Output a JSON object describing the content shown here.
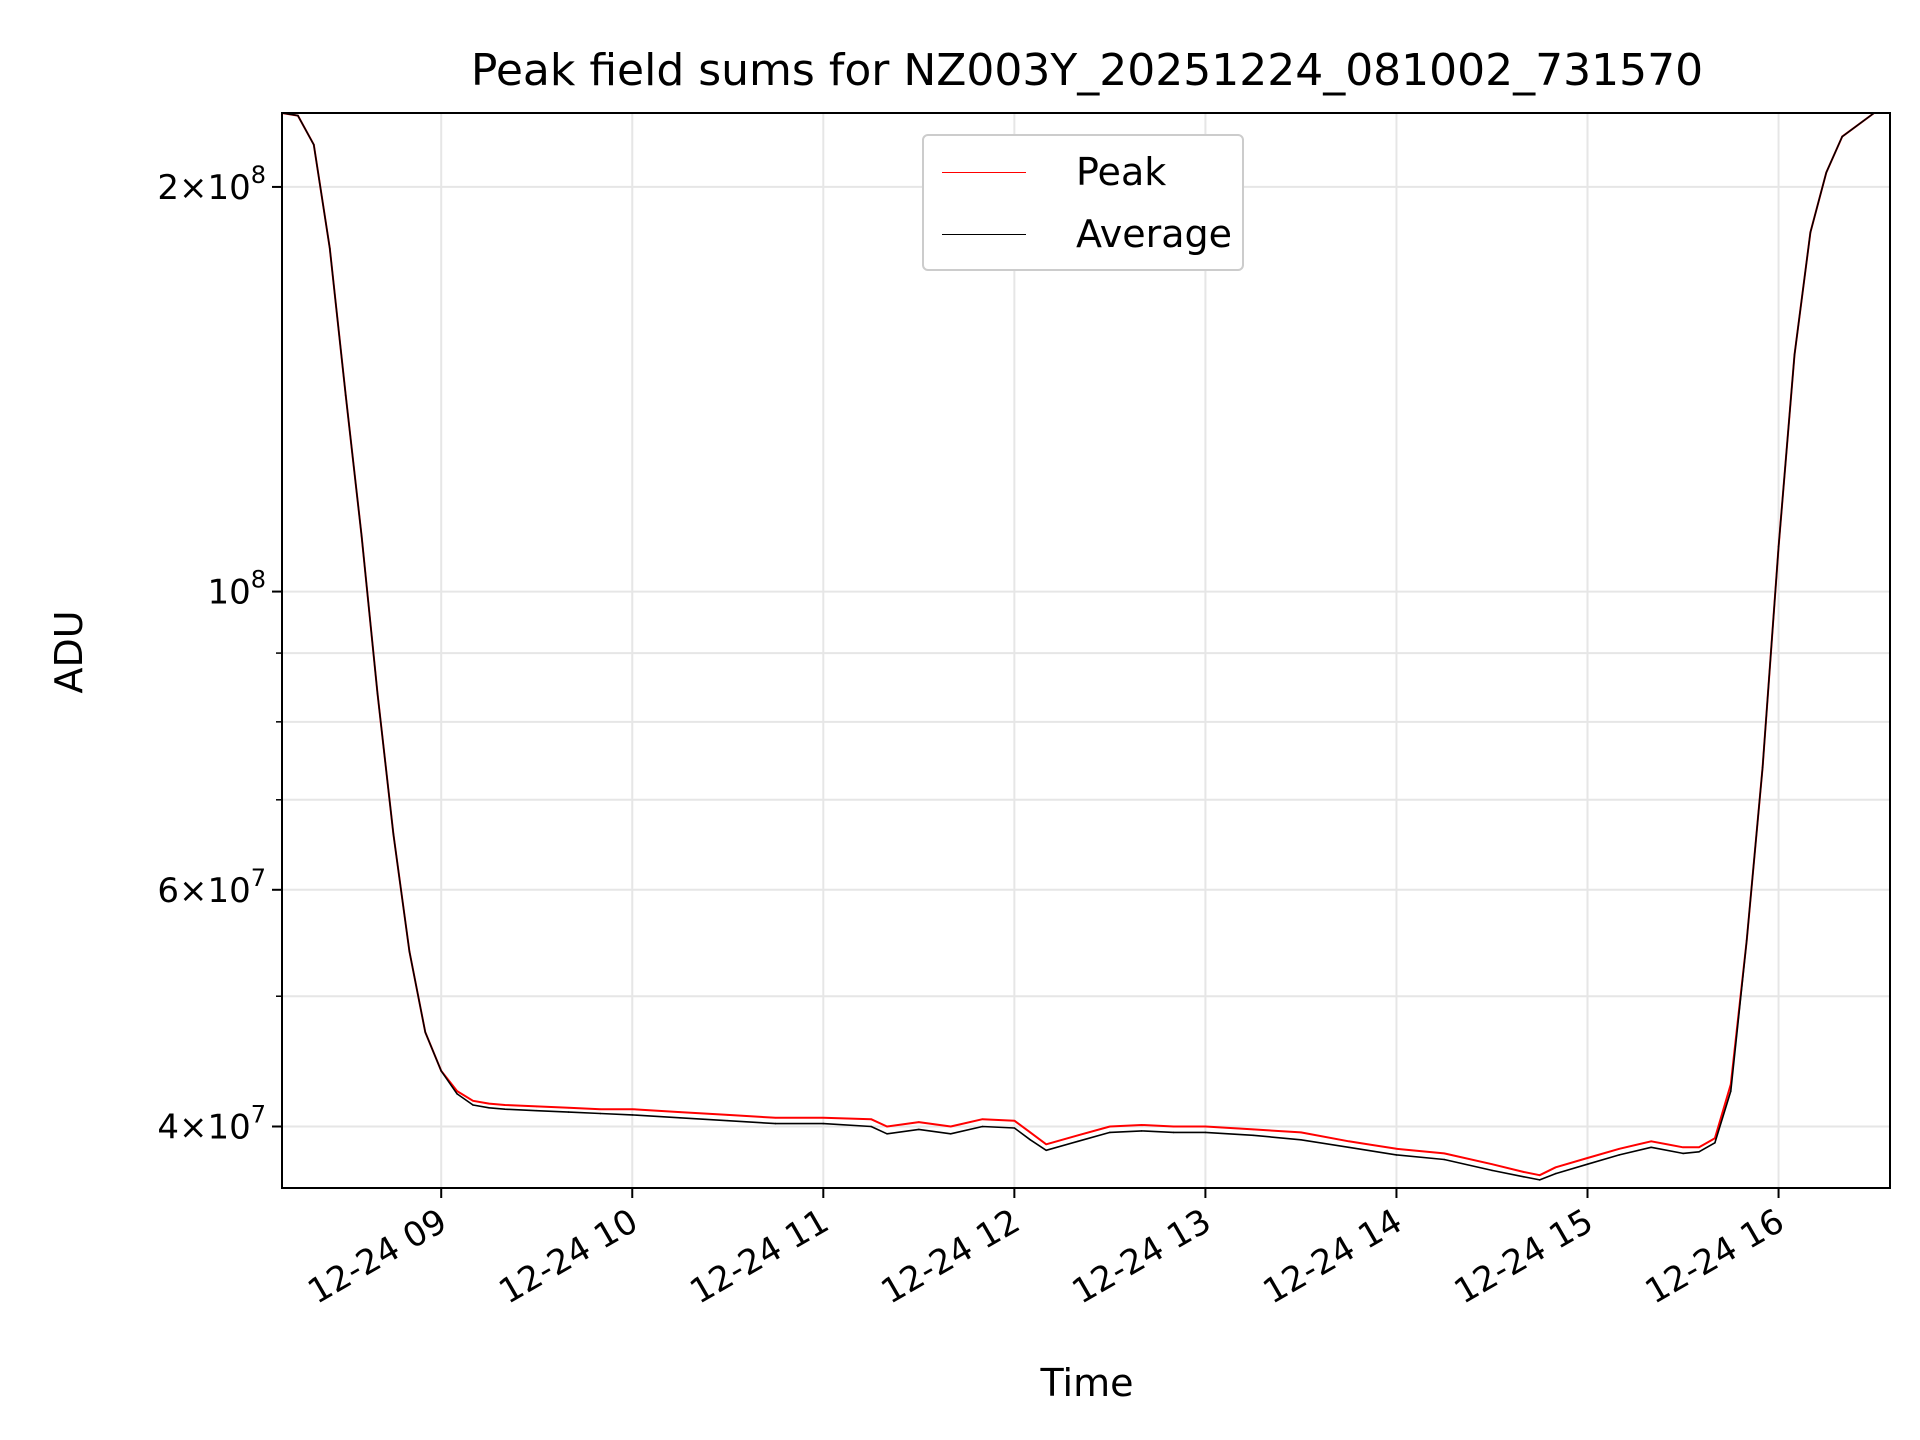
{
  "chart_data": {
    "type": "line",
    "title": "Peak field sums for NZ003Y_20251224_081002_731570",
    "xlabel": "Time",
    "ylabel": "ADU",
    "yscale": "log",
    "xlim": [
      "2025-12-24 08:10",
      "2025-12-24 16:35"
    ],
    "ylim": [
      36000000,
      227000000
    ],
    "grid": true,
    "legend_position": "upper center",
    "x_ticks": [
      {
        "value": "2025-12-24 09:00",
        "label": "12-24 09"
      },
      {
        "value": "2025-12-24 10:00",
        "label": "12-24 10"
      },
      {
        "value": "2025-12-24 11:00",
        "label": "12-24 11"
      },
      {
        "value": "2025-12-24 12:00",
        "label": "12-24 12"
      },
      {
        "value": "2025-12-24 13:00",
        "label": "12-24 13"
      },
      {
        "value": "2025-12-24 14:00",
        "label": "12-24 14"
      },
      {
        "value": "2025-12-24 15:00",
        "label": "12-24 15"
      },
      {
        "value": "2025-12-24 16:00",
        "label": "12-24 16"
      }
    ],
    "y_ticks_major": [
      {
        "value": 40000000,
        "base": "4×10",
        "exp": "7"
      },
      {
        "value": 60000000,
        "base": "6×10",
        "exp": "7"
      },
      {
        "value": 100000000,
        "base": "10",
        "exp": "8"
      },
      {
        "value": 200000000,
        "base": "2×10",
        "exp": "8"
      }
    ],
    "y_ticks_minor": [
      50000000,
      70000000,
      80000000,
      90000000
    ],
    "series": [
      {
        "name": "Peak",
        "color": "#ff0000",
        "x": [
          "2025-12-24 08:10",
          "08:15",
          "08:20",
          "08:25",
          "08:30",
          "08:35",
          "08:40",
          "08:45",
          "08:50",
          "08:55",
          "09:00",
          "09:05",
          "09:10",
          "09:15",
          "09:20",
          "09:30",
          "09:40",
          "09:50",
          "10:00",
          "10:15",
          "10:30",
          "10:45",
          "11:00",
          "11:15",
          "11:20",
          "11:30",
          "11:40",
          "11:50",
          "12:00",
          "12:05",
          "12:10",
          "12:20",
          "12:30",
          "12:40",
          "12:50",
          "13:00",
          "13:15",
          "13:30",
          "13:45",
          "14:00",
          "14:15",
          "14:30",
          "14:40",
          "14:45",
          "14:50",
          "15:00",
          "15:10",
          "15:20",
          "15:30",
          "15:35",
          "15:40",
          "15:45",
          "15:50",
          "15:55",
          "16:00",
          "16:05",
          "16:10",
          "16:15",
          "16:20",
          "16:30",
          "16:35"
        ],
        "y": [
          227000000,
          226000000,
          215000000,
          180000000,
          140000000,
          110000000,
          84000000,
          66000000,
          54000000,
          47000000,
          44000000,
          42500000,
          41800000,
          41600000,
          41500000,
          41400000,
          41300000,
          41200000,
          41200000,
          41000000,
          40800000,
          40600000,
          40600000,
          40500000,
          40000000,
          40300000,
          40000000,
          40500000,
          40400000,
          39600000,
          38800000,
          39400000,
          40000000,
          40100000,
          40000000,
          40000000,
          39800000,
          39600000,
          39000000,
          38500000,
          38200000,
          37500000,
          37000000,
          36800000,
          37300000,
          37900000,
          38500000,
          39000000,
          38600000,
          38600000,
          39200000,
          43000000,
          55000000,
          74000000,
          108000000,
          150000000,
          185000000,
          205000000,
          218000000,
          227000000,
          227000000
        ]
      },
      {
        "name": "Average",
        "color": "#000000",
        "x": [
          "2025-12-24 08:10",
          "08:15",
          "08:20",
          "08:25",
          "08:30",
          "08:35",
          "08:40",
          "08:45",
          "08:50",
          "08:55",
          "09:00",
          "09:05",
          "09:10",
          "09:15",
          "09:20",
          "09:30",
          "09:40",
          "09:50",
          "10:00",
          "10:15",
          "10:30",
          "10:45",
          "11:00",
          "11:15",
          "11:20",
          "11:30",
          "11:40",
          "11:50",
          "12:00",
          "12:05",
          "12:10",
          "12:20",
          "12:30",
          "12:40",
          "12:50",
          "13:00",
          "13:15",
          "13:30",
          "13:45",
          "14:00",
          "14:15",
          "14:30",
          "14:40",
          "14:45",
          "14:50",
          "15:00",
          "15:10",
          "15:20",
          "15:30",
          "15:35",
          "15:40",
          "15:45",
          "15:50",
          "15:55",
          "16:00",
          "16:05",
          "16:10",
          "16:15",
          "16:20",
          "16:30",
          "16:35"
        ],
        "y": [
          227000000,
          226000000,
          215000000,
          180000000,
          140000000,
          110000000,
          84000000,
          66000000,
          54000000,
          47000000,
          44000000,
          42300000,
          41500000,
          41300000,
          41200000,
          41100000,
          41000000,
          40900000,
          40800000,
          40600000,
          40400000,
          40200000,
          40200000,
          40000000,
          39500000,
          39800000,
          39500000,
          40000000,
          39900000,
          39100000,
          38400000,
          39000000,
          39600000,
          39700000,
          39600000,
          39600000,
          39400000,
          39100000,
          38600000,
          38100000,
          37800000,
          37100000,
          36700000,
          36500000,
          36900000,
          37500000,
          38100000,
          38600000,
          38200000,
          38300000,
          38900000,
          42500000,
          55000000,
          74000000,
          108000000,
          150000000,
          185000000,
          205000000,
          218000000,
          227000000,
          227000000
        ]
      }
    ]
  }
}
